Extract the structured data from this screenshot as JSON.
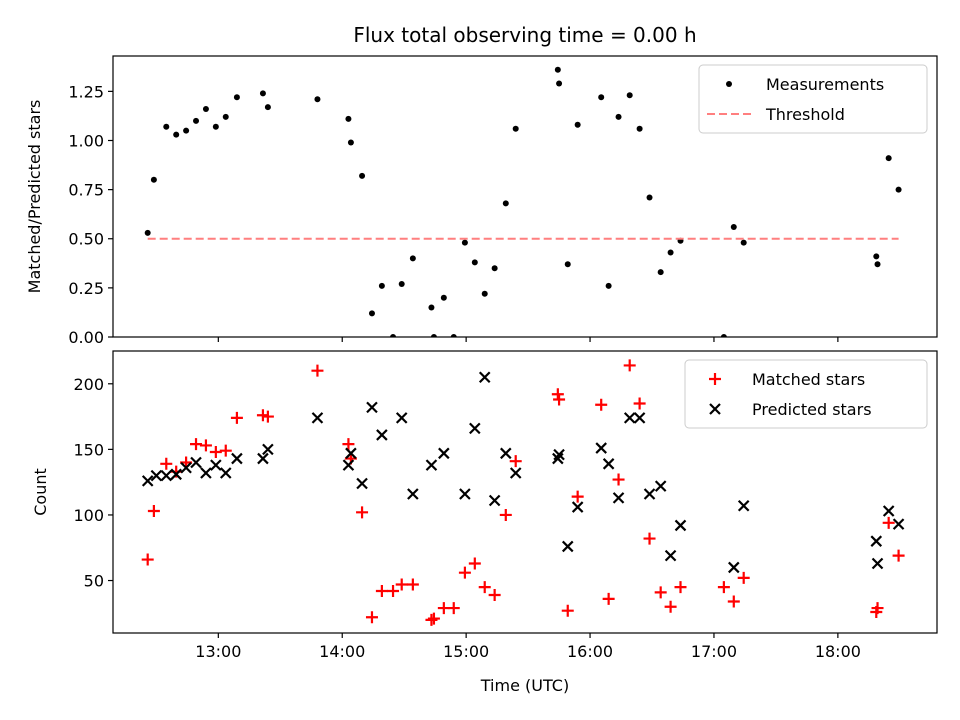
{
  "figure": {
    "title": "Flux total observing time = 0.00 h",
    "xlabel": "Time (UTC)"
  },
  "chart_data": [
    {
      "type": "scatter",
      "title": "Flux total observing time = 0.00 h",
      "ylabel": "Matched/Predicted stars",
      "xlabel": "",
      "x_unit": "hours (UTC)",
      "xlim": [
        12.15,
        18.8
      ],
      "ylim": [
        0,
        1.43
      ],
      "x_ticks": [
        13,
        14,
        15,
        16,
        17,
        18
      ],
      "x_tick_labels": [
        "13:00",
        "14:00",
        "15:00",
        "16:00",
        "17:00",
        "18:00"
      ],
      "y_ticks": [
        0,
        0.25,
        0.5,
        0.75,
        1.0,
        1.25
      ],
      "y_tick_labels": [
        "0.00",
        "0.25",
        "0.50",
        "0.75",
        "1.00",
        "1.25"
      ],
      "legend_position": "upper right",
      "grid": false,
      "series": [
        {
          "name": "Measurements",
          "style": "dot",
          "color": "#000000",
          "points": [
            [
              12.43,
              0.53
            ],
            [
              12.48,
              0.8
            ],
            [
              12.58,
              1.07
            ],
            [
              12.66,
              1.03
            ],
            [
              12.74,
              1.05
            ],
            [
              12.82,
              1.1
            ],
            [
              12.9,
              1.16
            ],
            [
              12.98,
              1.07
            ],
            [
              13.06,
              1.12
            ],
            [
              13.15,
              1.22
            ],
            [
              13.36,
              1.24
            ],
            [
              13.4,
              1.17
            ],
            [
              13.8,
              1.21
            ],
            [
              14.05,
              1.11
            ],
            [
              14.07,
              0.99
            ],
            [
              14.16,
              0.82
            ],
            [
              14.24,
              0.12
            ],
            [
              14.32,
              0.26
            ],
            [
              14.41,
              0.0
            ],
            [
              14.48,
              0.27
            ],
            [
              14.57,
              0.4
            ],
            [
              14.72,
              0.15
            ],
            [
              14.74,
              0.0
            ],
            [
              14.82,
              0.2
            ],
            [
              14.9,
              0.0
            ],
            [
              14.99,
              0.48
            ],
            [
              15.07,
              0.38
            ],
            [
              15.15,
              0.22
            ],
            [
              15.23,
              0.35
            ],
            [
              15.32,
              0.68
            ],
            [
              15.4,
              1.06
            ],
            [
              15.74,
              1.36
            ],
            [
              15.75,
              1.29
            ],
            [
              15.82,
              0.37
            ],
            [
              15.9,
              1.08
            ],
            [
              16.09,
              1.22
            ],
            [
              16.15,
              0.26
            ],
            [
              16.23,
              1.12
            ],
            [
              16.32,
              1.23
            ],
            [
              16.4,
              1.06
            ],
            [
              16.48,
              0.71
            ],
            [
              16.57,
              0.33
            ],
            [
              16.65,
              0.43
            ],
            [
              16.73,
              0.49
            ],
            [
              17.08,
              0.0
            ],
            [
              17.16,
              0.56
            ],
            [
              17.24,
              0.48
            ],
            [
              18.31,
              0.41
            ],
            [
              18.32,
              0.37
            ],
            [
              18.41,
              0.91
            ],
            [
              18.49,
              0.75
            ]
          ]
        },
        {
          "name": "Threshold",
          "style": "dashed-line",
          "color": "#ff7f7f",
          "points": [
            [
              12.43,
              0.5
            ],
            [
              18.49,
              0.5
            ]
          ]
        }
      ]
    },
    {
      "type": "scatter",
      "title": "",
      "ylabel": "Count",
      "xlabel": "Time (UTC)",
      "x_unit": "hours (UTC)",
      "xlim": [
        12.15,
        18.8
      ],
      "ylim": [
        10,
        225
      ],
      "x_ticks": [
        13,
        14,
        15,
        16,
        17,
        18
      ],
      "x_tick_labels": [
        "13:00",
        "14:00",
        "15:00",
        "16:00",
        "17:00",
        "18:00"
      ],
      "y_ticks": [
        50,
        100,
        150,
        200
      ],
      "y_tick_labels": [
        "50",
        "100",
        "150",
        "200"
      ],
      "legend_position": "upper right",
      "grid": false,
      "series": [
        {
          "name": "Matched stars",
          "style": "plus",
          "color": "#ff0000",
          "points": [
            [
              12.43,
              66
            ],
            [
              12.48,
              103
            ],
            [
              12.58,
              139
            ],
            [
              12.66,
              133
            ],
            [
              12.74,
              140
            ],
            [
              12.82,
              154
            ],
            [
              12.9,
              153
            ],
            [
              12.98,
              148
            ],
            [
              13.06,
              149
            ],
            [
              13.15,
              174
            ],
            [
              13.36,
              176
            ],
            [
              13.4,
              175
            ],
            [
              13.8,
              210
            ],
            [
              14.05,
              154
            ],
            [
              14.07,
              143
            ],
            [
              14.16,
              102
            ],
            [
              14.24,
              22
            ],
            [
              14.32,
              42
            ],
            [
              14.41,
              42
            ],
            [
              14.48,
              47
            ],
            [
              14.57,
              47
            ],
            [
              14.72,
              20
            ],
            [
              14.74,
              21
            ],
            [
              14.82,
              29
            ],
            [
              14.9,
              29
            ],
            [
              14.99,
              56
            ],
            [
              15.07,
              63
            ],
            [
              15.15,
              45
            ],
            [
              15.23,
              39
            ],
            [
              15.32,
              100
            ],
            [
              15.4,
              141
            ],
            [
              15.74,
              192
            ],
            [
              15.75,
              188
            ],
            [
              15.82,
              27
            ],
            [
              15.9,
              114
            ],
            [
              16.09,
              184
            ],
            [
              16.15,
              36
            ],
            [
              16.23,
              127
            ],
            [
              16.32,
              214
            ],
            [
              16.4,
              185
            ],
            [
              16.48,
              82
            ],
            [
              16.57,
              41
            ],
            [
              16.65,
              30
            ],
            [
              16.73,
              45
            ],
            [
              17.08,
              45
            ],
            [
              17.16,
              34
            ],
            [
              17.24,
              52
            ],
            [
              18.31,
              26
            ],
            [
              18.32,
              29
            ],
            [
              18.41,
              94
            ],
            [
              18.49,
              69
            ]
          ]
        },
        {
          "name": "Predicted stars",
          "style": "x",
          "color": "#000000",
          "points": [
            [
              12.43,
              126
            ],
            [
              12.5,
              130
            ],
            [
              12.58,
              130
            ],
            [
              12.66,
              131
            ],
            [
              12.74,
              136
            ],
            [
              12.82,
              140
            ],
            [
              12.9,
              132
            ],
            [
              12.98,
              138
            ],
            [
              13.06,
              132
            ],
            [
              13.15,
              143
            ],
            [
              13.36,
              143
            ],
            [
              13.4,
              150
            ],
            [
              13.8,
              174
            ],
            [
              14.05,
              138
            ],
            [
              14.07,
              147
            ],
            [
              14.16,
              124
            ],
            [
              14.24,
              182
            ],
            [
              14.32,
              161
            ],
            [
              14.48,
              174
            ],
            [
              14.57,
              116
            ],
            [
              14.72,
              138
            ],
            [
              14.82,
              147
            ],
            [
              14.99,
              116
            ],
            [
              15.07,
              166
            ],
            [
              15.15,
              205
            ],
            [
              15.23,
              111
            ],
            [
              15.32,
              147
            ],
            [
              15.4,
              132
            ],
            [
              15.74,
              143
            ],
            [
              15.75,
              146
            ],
            [
              15.82,
              76
            ],
            [
              15.9,
              106
            ],
            [
              16.09,
              151
            ],
            [
              16.15,
              139
            ],
            [
              16.23,
              113
            ],
            [
              16.32,
              174
            ],
            [
              16.4,
              174
            ],
            [
              16.48,
              116
            ],
            [
              16.57,
              122
            ],
            [
              16.65,
              69
            ],
            [
              16.73,
              92
            ],
            [
              17.16,
              60
            ],
            [
              17.24,
              107
            ],
            [
              18.31,
              80
            ],
            [
              18.32,
              63
            ],
            [
              18.41,
              103
            ],
            [
              18.49,
              93
            ]
          ]
        }
      ]
    }
  ]
}
